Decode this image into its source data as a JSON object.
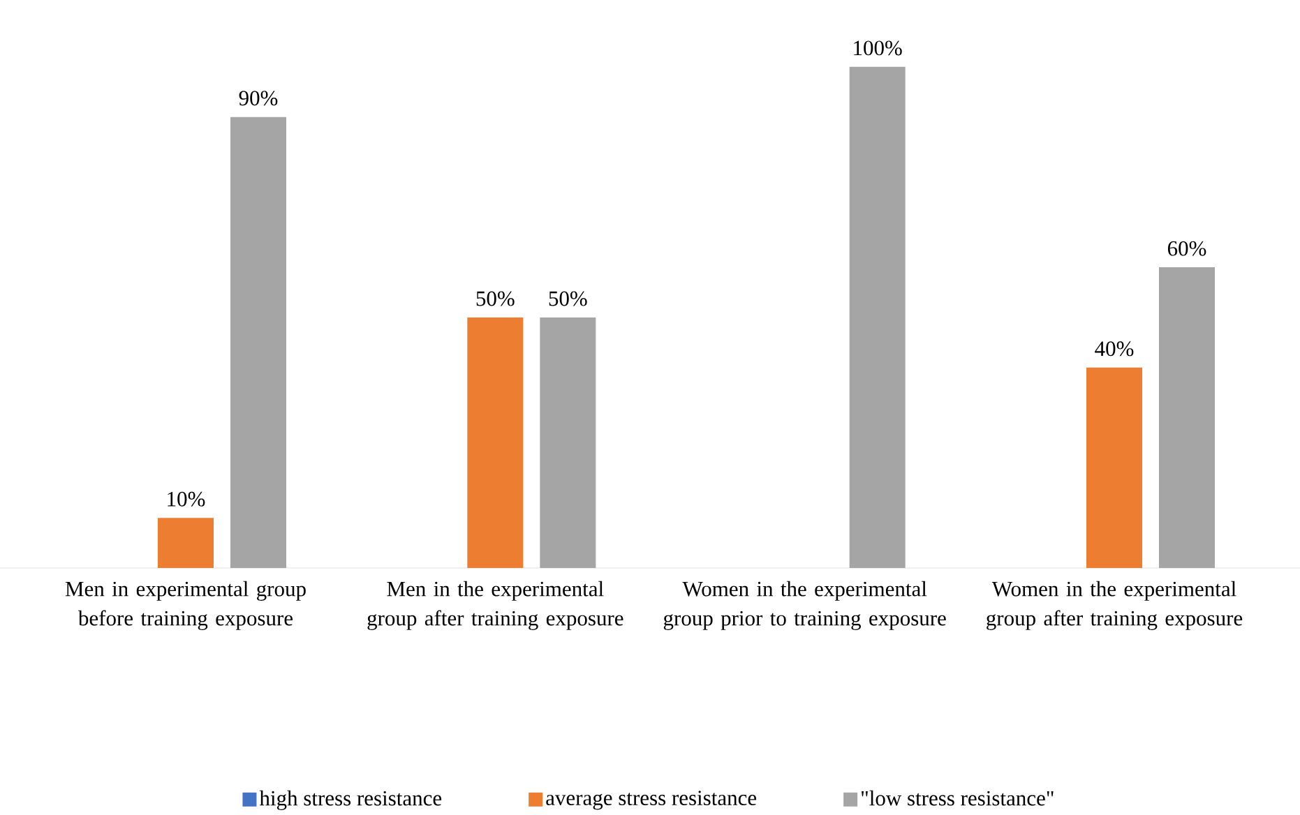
{
  "chart_data": {
    "type": "bar",
    "categories": [
      "Men in experimental group before training exposure",
      "Men in the experimental group after training exposure",
      "Women in the experimental group prior to training exposure",
      "Women in the experimental group after training exposure"
    ],
    "series": [
      {
        "name": "high stress resistance",
        "color": "#4472c4",
        "values": [
          0,
          0,
          0,
          0
        ]
      },
      {
        "name": "average stress resistance",
        "color": "#ed7d31",
        "values": [
          10,
          50,
          0,
          40
        ],
        "value_labels": [
          "10%",
          "50%",
          null,
          "40%"
        ]
      },
      {
        "name": "\"low stress resistance\"",
        "color": "#a5a5a5",
        "values": [
          90,
          50,
          100,
          60
        ],
        "value_labels": [
          "90%",
          "50%",
          "100%",
          "60%"
        ]
      }
    ],
    "legend": "bottom"
  }
}
